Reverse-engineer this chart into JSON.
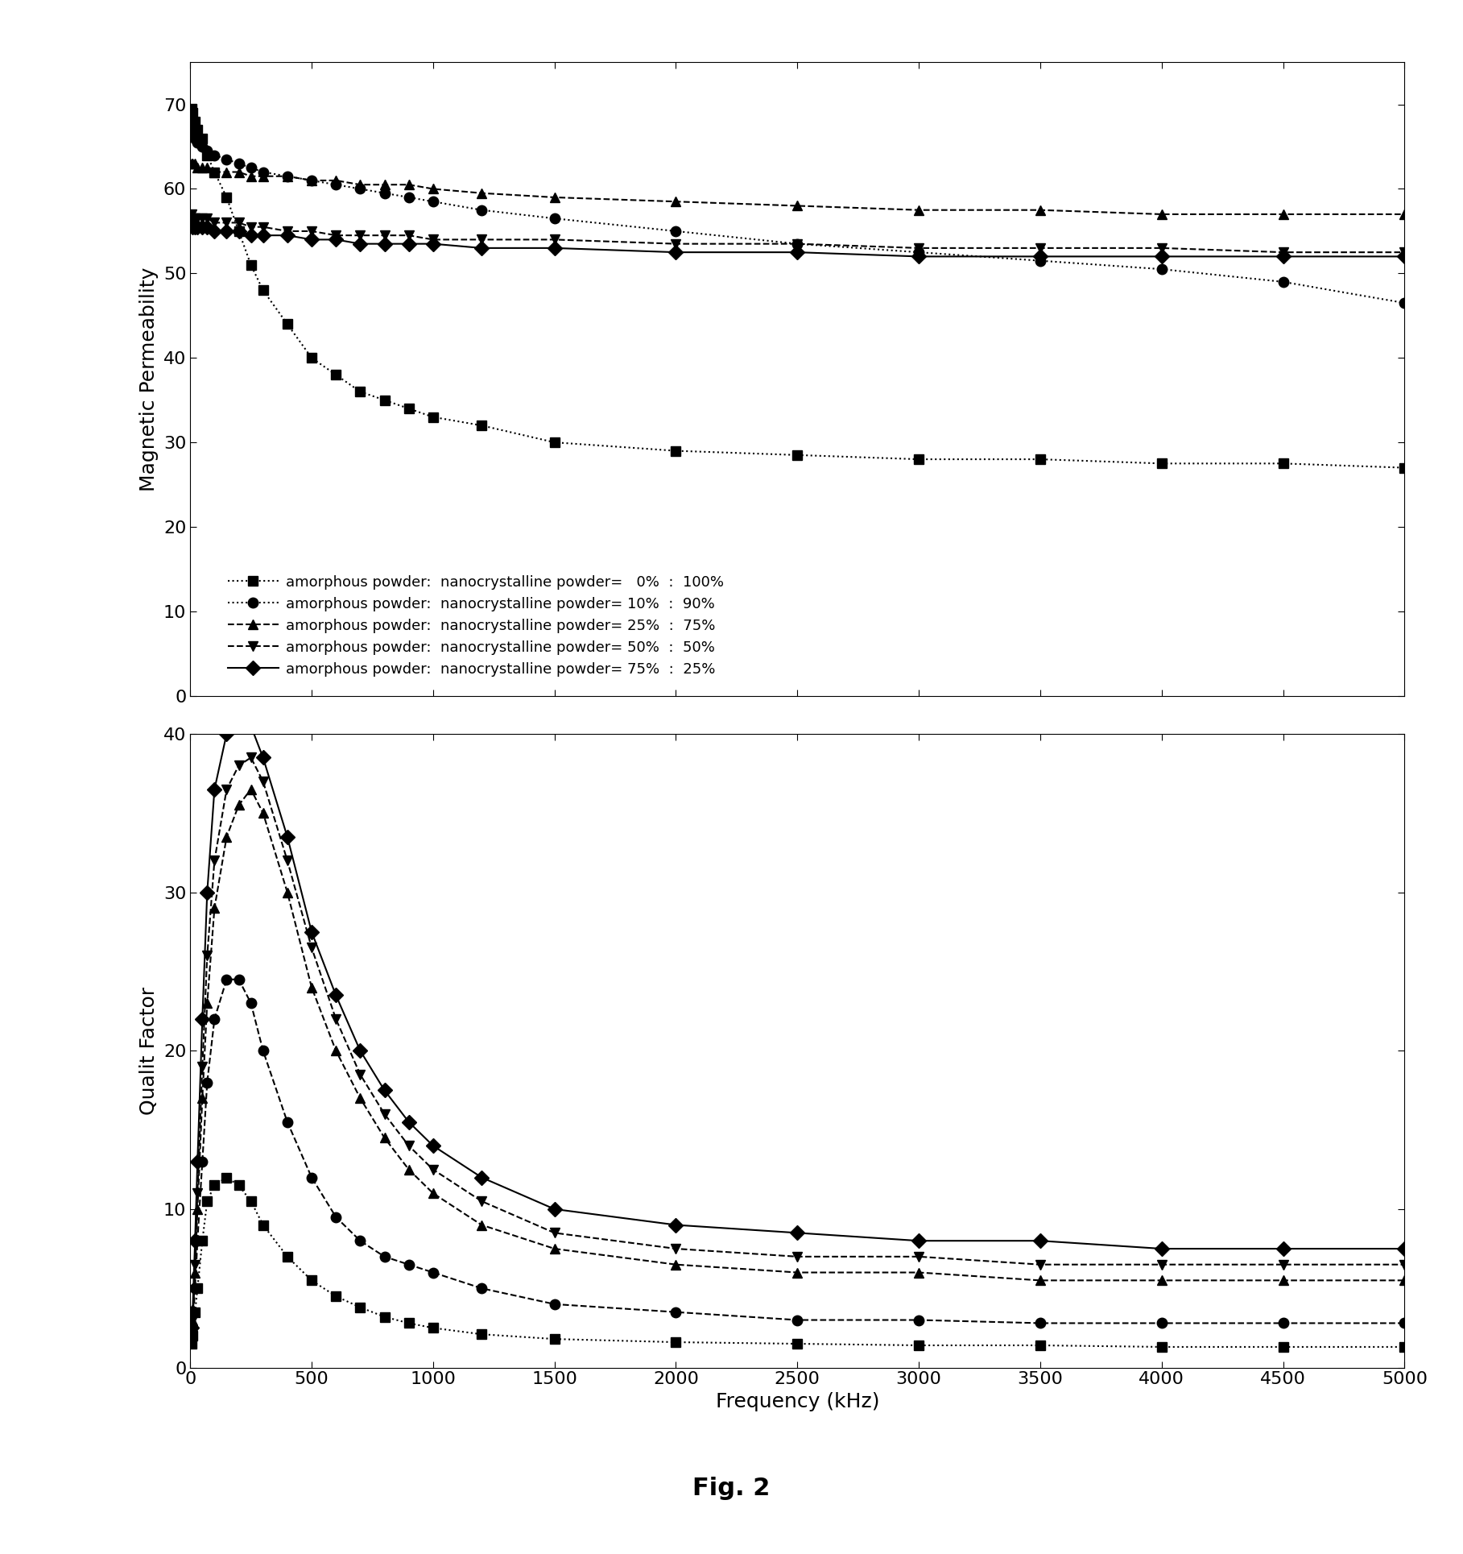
{
  "fig_width": 18.17,
  "fig_height": 19.29,
  "dpi": 100,
  "title": "Fig. 2",
  "xlabel": "Frequency (kHz)",
  "ylabel_top": "Magnetic Permeability",
  "ylabel_bottom": "Qualit Factor",
  "legend_labels": [
    "amorphous powder:  nanocrystalline powder=   0%  :  100%",
    "amorphous powder:  nanocrystalline powder= 10%  :  90%",
    "amorphous powder:  nanocrystalline powder= 25%  :  75%",
    "amorphous powder:  nanocrystalline powder= 50%  :  50%",
    "amorphous powder:  nanocrystalline powder= 75%  :  25%"
  ],
  "markers": [
    "s",
    "o",
    "^",
    "v",
    "D"
  ],
  "linestyles_top": [
    ":",
    ":",
    "--",
    "--",
    "-"
  ],
  "linestyles_bottom": [
    ":",
    "--",
    "--",
    "--",
    "-"
  ],
  "freq_perm": [
    5,
    10,
    20,
    30,
    50,
    70,
    100,
    150,
    200,
    250,
    300,
    400,
    500,
    600,
    700,
    800,
    900,
    1000,
    1200,
    1500,
    2000,
    2500,
    3000,
    3500,
    4000,
    4500,
    5000
  ],
  "perm_0_100": [
    69.5,
    69,
    68,
    67,
    66,
    64,
    62,
    59,
    55,
    51,
    48,
    44,
    40,
    38,
    36,
    35,
    34,
    33,
    32,
    30,
    29,
    28.5,
    28,
    28,
    27.5,
    27.5,
    27
  ],
  "perm_10_90": [
    67,
    66.5,
    66,
    65.5,
    65,
    64.5,
    64,
    63.5,
    63,
    62.5,
    62,
    61.5,
    61,
    60.5,
    60,
    59.5,
    59,
    58.5,
    57.5,
    56.5,
    55,
    53.5,
    52.5,
    51.5,
    50.5,
    49,
    46.5
  ],
  "perm_25_75": [
    63,
    63,
    63,
    62.5,
    62.5,
    62.5,
    62,
    62,
    62,
    61.5,
    61.5,
    61.5,
    61,
    61,
    60.5,
    60.5,
    60.5,
    60,
    59.5,
    59,
    58.5,
    58,
    57.5,
    57.5,
    57,
    57,
    57
  ],
  "perm_50_50": [
    57,
    56.5,
    56.5,
    56.5,
    56.5,
    56.5,
    56,
    56,
    56,
    55.5,
    55.5,
    55,
    55,
    54.5,
    54.5,
    54.5,
    54.5,
    54,
    54,
    54,
    53.5,
    53.5,
    53,
    53,
    53,
    52.5,
    52.5
  ],
  "perm_75_25": [
    56,
    55.5,
    55.5,
    55.5,
    55.5,
    55.5,
    55,
    55,
    55,
    54.5,
    54.5,
    54.5,
    54,
    54,
    53.5,
    53.5,
    53.5,
    53.5,
    53,
    53,
    52.5,
    52.5,
    52,
    52,
    52,
    52,
    52
  ],
  "freq_q": [
    5,
    10,
    20,
    30,
    50,
    70,
    100,
    150,
    200,
    250,
    300,
    400,
    500,
    600,
    700,
    800,
    900,
    1000,
    1200,
    1500,
    2000,
    2500,
    3000,
    3500,
    4000,
    4500,
    5000
  ],
  "q_0_100": [
    1.5,
    2.0,
    3.5,
    5.0,
    8.0,
    10.5,
    11.5,
    12.0,
    11.5,
    10.5,
    9.0,
    7.0,
    5.5,
    4.5,
    3.8,
    3.2,
    2.8,
    2.5,
    2.1,
    1.8,
    1.6,
    1.5,
    1.4,
    1.4,
    1.3,
    1.3,
    1.3
  ],
  "q_10_90": [
    1.8,
    2.5,
    5.0,
    8.0,
    13.0,
    18.0,
    22.0,
    24.5,
    24.5,
    23.0,
    20.0,
    15.5,
    12.0,
    9.5,
    8.0,
    7.0,
    6.5,
    6.0,
    5.0,
    4.0,
    3.5,
    3.0,
    3.0,
    2.8,
    2.8,
    2.8,
    2.8
  ],
  "q_25_75": [
    2.0,
    3.0,
    6.0,
    10.0,
    17.0,
    23.0,
    29.0,
    33.5,
    35.5,
    36.5,
    35.0,
    30.0,
    24.0,
    20.0,
    17.0,
    14.5,
    12.5,
    11.0,
    9.0,
    7.5,
    6.5,
    6.0,
    6.0,
    5.5,
    5.5,
    5.5,
    5.5
  ],
  "q_50_50": [
    2.2,
    3.0,
    6.5,
    11.0,
    19.0,
    26.0,
    32.0,
    36.5,
    38.0,
    38.5,
    37.0,
    32.0,
    26.5,
    22.0,
    18.5,
    16.0,
    14.0,
    12.5,
    10.5,
    8.5,
    7.5,
    7.0,
    7.0,
    6.5,
    6.5,
    6.5,
    6.5
  ],
  "q_75_25": [
    2.5,
    3.5,
    8.0,
    13.0,
    22.0,
    30.0,
    36.5,
    40.0,
    41.0,
    40.5,
    38.5,
    33.5,
    27.5,
    23.5,
    20.0,
    17.5,
    15.5,
    14.0,
    12.0,
    10.0,
    9.0,
    8.5,
    8.0,
    8.0,
    7.5,
    7.5,
    7.5
  ],
  "perm_ylim": [
    0,
    75
  ],
  "perm_yticks": [
    0,
    10,
    20,
    30,
    40,
    50,
    60,
    70
  ],
  "q_ylim": [
    0,
    40
  ],
  "q_yticks": [
    0,
    10,
    20,
    30,
    40
  ],
  "xlim": [
    0,
    5000
  ],
  "xticks": [
    0,
    500,
    1000,
    1500,
    2000,
    2500,
    3000,
    3500,
    4000,
    4500,
    5000
  ],
  "markersize": 9,
  "linewidth": 1.5,
  "color": "black",
  "fontsize_label": 18,
  "fontsize_tick": 16,
  "fontsize_legend": 13,
  "fontsize_title": 22
}
